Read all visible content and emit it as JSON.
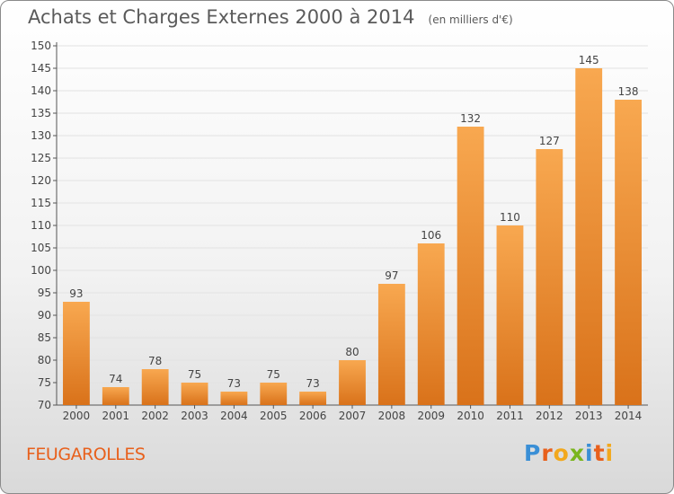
{
  "header": {
    "title": "Achats et Charges Externes 2000 à 2014",
    "subtitle": "(en milliers d'€)"
  },
  "footer": {
    "town": "FEUGAROLLES",
    "logo_letters": [
      {
        "ch": "P",
        "color": "#3a8fd6"
      },
      {
        "ch": "r",
        "color": "#e8601c"
      },
      {
        "ch": "o",
        "color": "#f2a81d"
      },
      {
        "ch": "x",
        "color": "#7ab51d"
      },
      {
        "ch": "i",
        "color": "#3a8fd6"
      },
      {
        "ch": "t",
        "color": "#e8601c"
      },
      {
        "ch": "i",
        "color": "#f2a81d"
      }
    ]
  },
  "chart_data": {
    "type": "bar",
    "title": "Achats et Charges Externes 2000 à 2014",
    "subtitle": "(en milliers d'€)",
    "categories": [
      "2000",
      "2001",
      "2002",
      "2003",
      "2004",
      "2005",
      "2006",
      "2007",
      "2008",
      "2009",
      "2010",
      "2011",
      "2012",
      "2013",
      "2014"
    ],
    "values": [
      93,
      74,
      78,
      75,
      73,
      75,
      73,
      80,
      97,
      106,
      132,
      110,
      127,
      145,
      138
    ],
    "xlabel": "",
    "ylabel": "",
    "ylim": [
      70,
      150
    ],
    "yticks": [
      70,
      75,
      80,
      85,
      90,
      95,
      100,
      105,
      110,
      115,
      120,
      125,
      130,
      135,
      140,
      145,
      150
    ],
    "grid": true,
    "bar_color_top": "#f8a850",
    "bar_color_bottom": "#d9721a"
  }
}
